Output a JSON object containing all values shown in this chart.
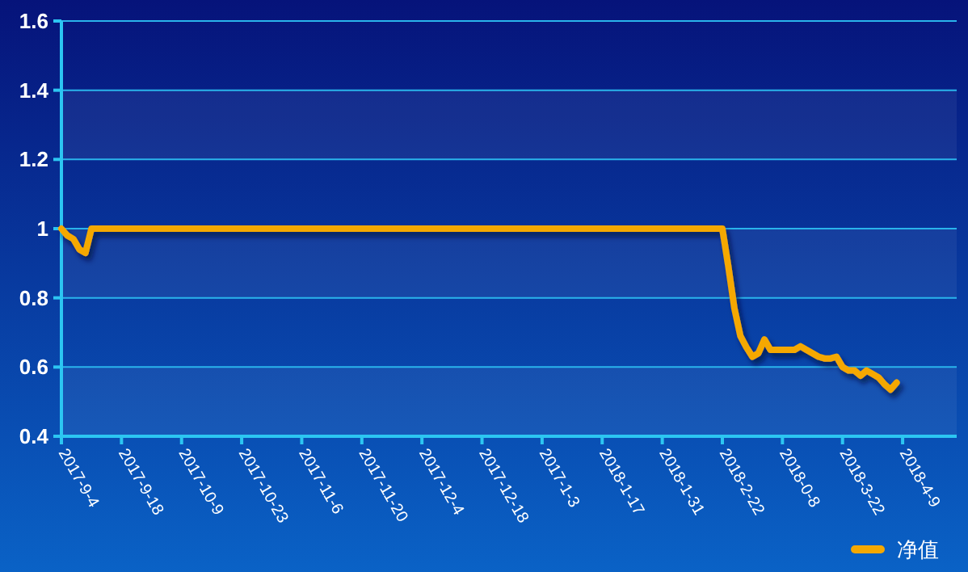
{
  "chart_data": {
    "type": "line",
    "categories": [
      "2017-9-4",
      null,
      null,
      null,
      null,
      null,
      null,
      null,
      null,
      null,
      "2017-9-18",
      null,
      null,
      null,
      null,
      null,
      null,
      null,
      null,
      null,
      "2017-10-9",
      null,
      null,
      null,
      null,
      null,
      null,
      null,
      null,
      null,
      "2017-10-23",
      null,
      null,
      null,
      null,
      null,
      null,
      null,
      null,
      null,
      "2017-11-6",
      null,
      null,
      null,
      null,
      null,
      null,
      null,
      null,
      null,
      "2017-11-20",
      null,
      null,
      null,
      null,
      null,
      null,
      null,
      null,
      null,
      "2017-12-4",
      null,
      null,
      null,
      null,
      null,
      null,
      null,
      null,
      null,
      "2017-12-18",
      null,
      null,
      null,
      null,
      null,
      null,
      null,
      null,
      null,
      "2017-1-3",
      null,
      null,
      null,
      null,
      null,
      null,
      null,
      null,
      null,
      "2018-1-17",
      null,
      null,
      null,
      null,
      null,
      null,
      null,
      null,
      null,
      "2018-1-31",
      null,
      null,
      null,
      null,
      null,
      null,
      null,
      null,
      null,
      "2018-2-22",
      null,
      null,
      null,
      null,
      null,
      null,
      null,
      null,
      null,
      "2018-0-8",
      null,
      null,
      null,
      null,
      null,
      null,
      null,
      null,
      null,
      "2018-3-22",
      null,
      null,
      null,
      null,
      null,
      null,
      null,
      null,
      null,
      "2018-4-9",
      null,
      null,
      null,
      null,
      null,
      null,
      null,
      null,
      null
    ],
    "series": [
      {
        "name": "净值",
        "color": "#f5a800",
        "values": [
          1,
          0.98,
          0.97,
          0.94,
          0.93,
          1,
          1,
          1,
          1,
          1,
          1,
          1,
          1,
          1,
          1,
          1,
          1,
          1,
          1,
          1,
          1,
          1,
          1,
          1,
          1,
          1,
          1,
          1,
          1,
          1,
          1,
          1,
          1,
          1,
          1,
          1,
          1,
          1,
          1,
          1,
          1,
          1,
          1,
          1,
          1,
          1,
          1,
          1,
          1,
          1,
          1,
          1,
          1,
          1,
          1,
          1,
          1,
          1,
          1,
          1,
          1,
          1,
          1,
          1,
          1,
          1,
          1,
          1,
          1,
          1,
          1,
          1,
          1,
          1,
          1,
          1,
          1,
          1,
          1,
          1,
          1,
          1,
          1,
          1,
          1,
          1,
          1,
          1,
          1,
          1,
          1,
          1,
          1,
          1,
          1,
          1,
          1,
          1,
          1,
          1,
          1,
          1,
          1,
          1,
          1,
          1,
          1,
          1,
          1,
          1,
          1,
          0.89,
          0.77,
          0.69,
          0.657,
          0.63,
          0.64,
          0.68,
          0.65,
          0.65,
          0.65,
          0.65,
          0.65,
          0.66,
          0.65,
          0.64,
          0.63,
          0.625,
          0.625,
          0.63,
          0.6,
          0.59,
          0.59,
          0.575,
          0.59,
          0.58,
          0.57,
          0.55,
          0.535,
          0.555,
          null,
          null,
          null,
          null,
          null,
          null,
          null,
          null,
          null,
          null
        ]
      }
    ],
    "ylim": [
      0.4,
      1.6
    ],
    "yticks": [
      0.4,
      0.6,
      0.8,
      1,
      1.2,
      1.4,
      1.6
    ],
    "grid": "y",
    "legend": "bottom right",
    "marker": "none",
    "line_style": "solid"
  }
}
